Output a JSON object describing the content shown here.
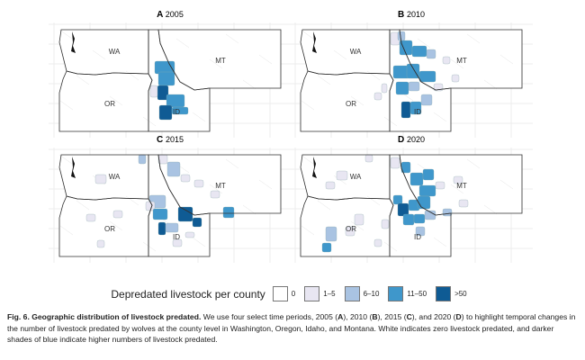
{
  "chart_data": {
    "type": "choropleth-map",
    "panels": [
      {
        "letter": "A",
        "year": "2005"
      },
      {
        "letter": "B",
        "year": "2010"
      },
      {
        "letter": "C",
        "year": "2015"
      },
      {
        "letter": "D",
        "year": "2020"
      }
    ],
    "state_labels": [
      "WA",
      "OR",
      "ID",
      "MT"
    ],
    "legend": {
      "title": "Depredated livestock per county",
      "bins": [
        {
          "label": "0",
          "color": "#ffffff"
        },
        {
          "label": "1–5",
          "color": "#e8e6f2"
        },
        {
          "label": "6–10",
          "color": "#a9c3e2"
        },
        {
          "label": "11–50",
          "color": "#3f97cb"
        },
        {
          "label": ">50",
          "color": "#0f5b94"
        }
      ]
    }
  },
  "caption": {
    "label": "Fig. 6. Geographic distribution of livestock predated.",
    "p1": " We use four select time periods, 2005 (",
    "a": "A",
    "p2": "), 2010 (",
    "b": "B",
    "p3": "), 2015 (",
    "c": "C",
    "p4": "), and 2020 (",
    "d": "D",
    "p5": ") to highlight temporal changes in the number of livestock predated by wolves at the county level in Washington, Oregon, Idaho, and Montana. White indicates zero livestock predated, and darker shades of blue indicate higher numbers of livestock predated."
  }
}
